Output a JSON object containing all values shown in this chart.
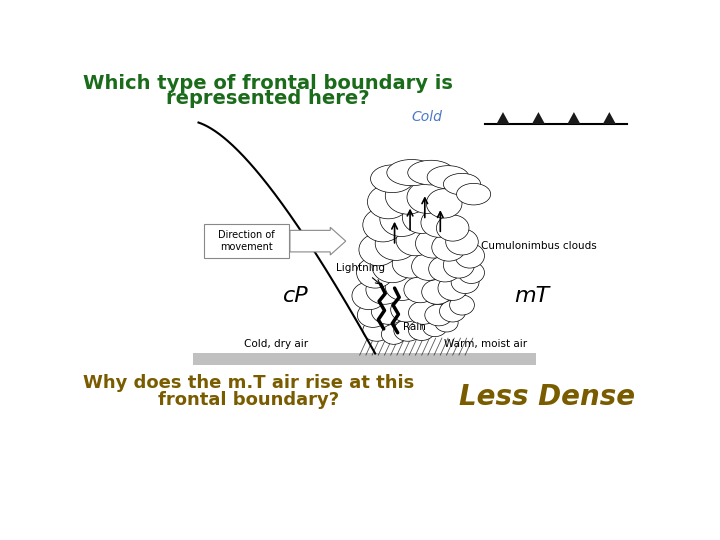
{
  "title_line1": "Which type of frontal boundary is",
  "title_line2": "represented here?",
  "title_color": "#1a6b1a",
  "question_line1": "Why does the m.T air rise at this",
  "question_line2": "frontal boundary?",
  "question_color": "#7a5c00",
  "answer": "Less Dense",
  "answer_color": "#7a5c00",
  "cold_label": "Cold",
  "cold_label_color": "#4a78c8",
  "cp_label": "cP",
  "mt_label": "mT",
  "cold_dry_label": "Cold, dry air",
  "warm_moist_label": "Warm, moist air",
  "lightning_label": "Lightning",
  "cumulonimbus_label": "Cumulonimbus clouds",
  "direction_label": "Direction of\nmovement",
  "rain_label": "Rain",
  "ground_color": "#c0c0c0",
  "background_color": "#ffffff",
  "triangle_color": "#1a1a1a"
}
